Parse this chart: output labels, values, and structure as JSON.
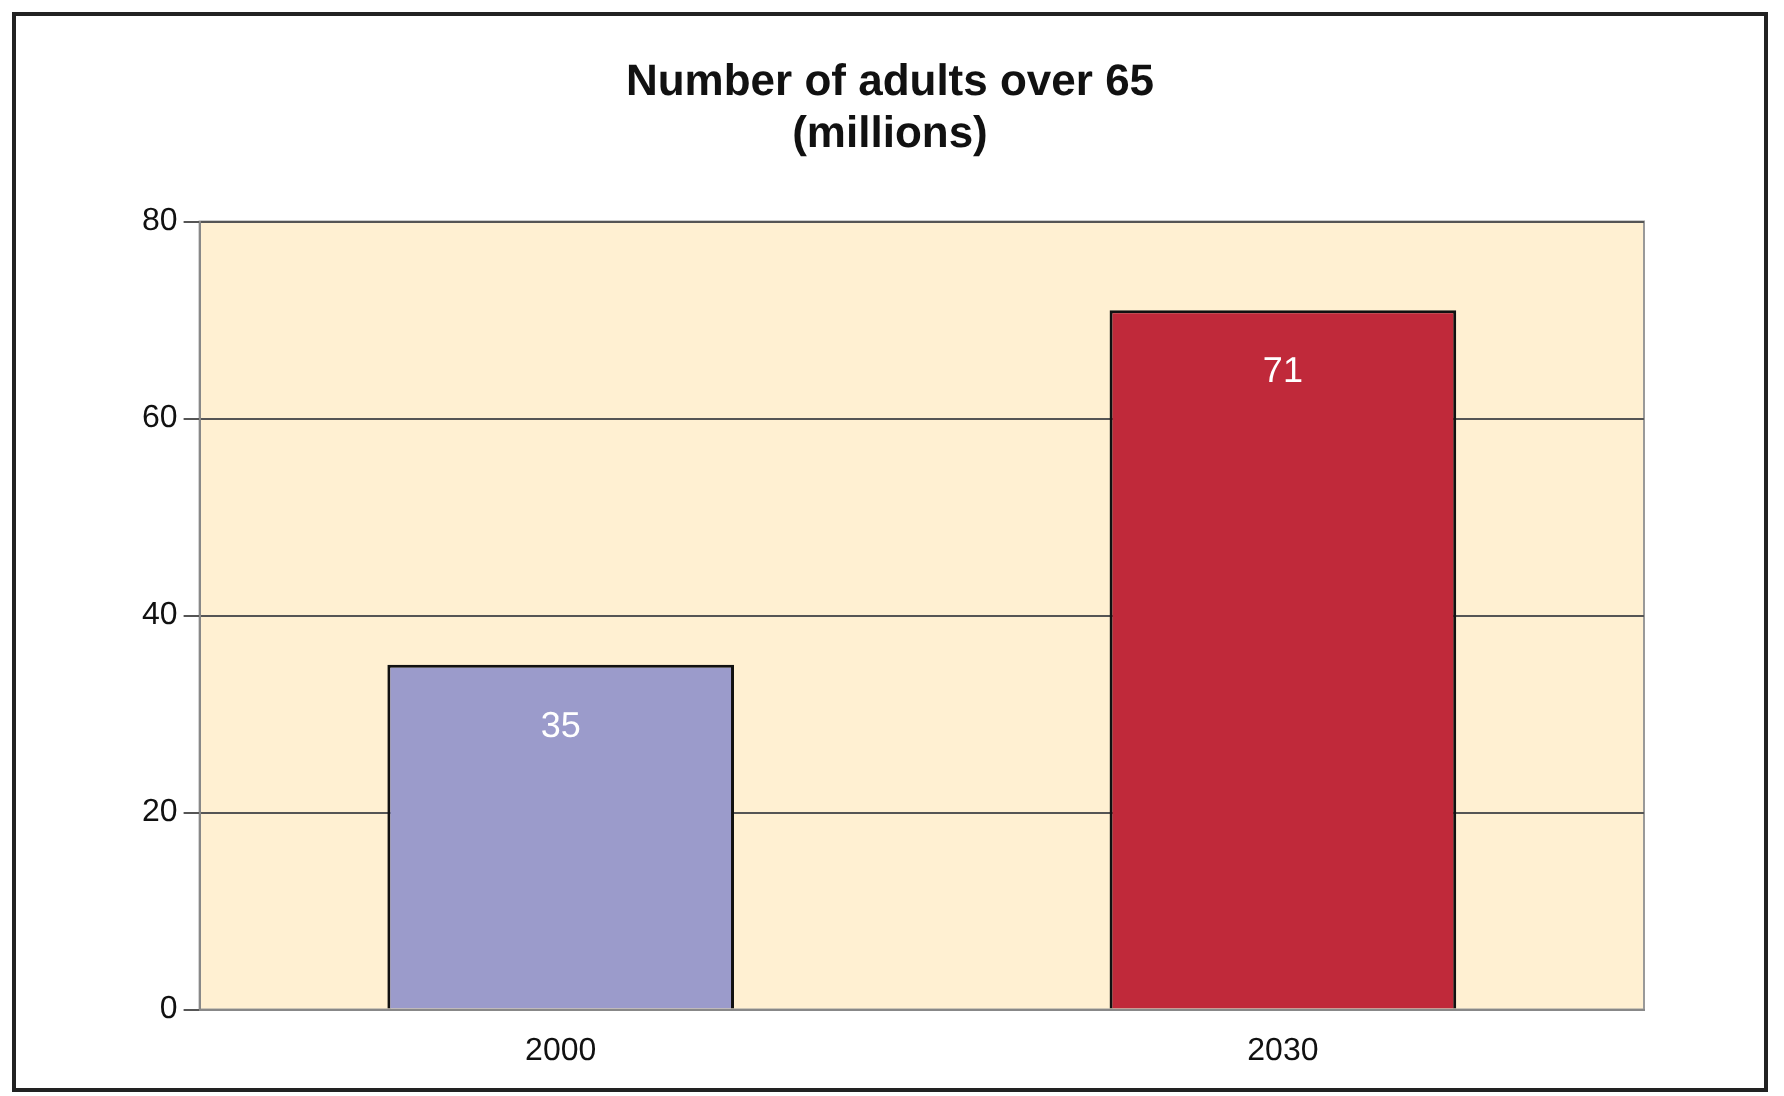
{
  "chart_data": {
    "type": "bar",
    "title": "Number of adults over 65\n(millions)",
    "categories": [
      "2000",
      "2030"
    ],
    "values": [
      35,
      71
    ],
    "colors": [
      "#9b9bcb",
      "#c0293a"
    ],
    "ylim": [
      0,
      80
    ],
    "yticks": [
      0,
      20,
      40,
      60,
      80
    ],
    "grid": "y",
    "data_labels": true
  }
}
